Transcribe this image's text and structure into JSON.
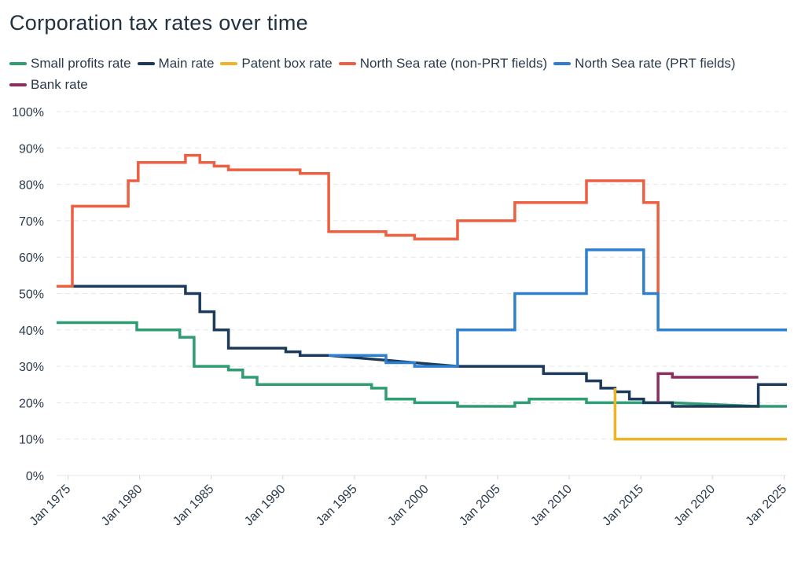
{
  "chart_data": {
    "type": "line",
    "title": "Corporation tax rates over time",
    "xlabel": "",
    "ylabel": "",
    "x_ticks": [
      "Jan 1975",
      "Jan 1980",
      "Jan 1985",
      "Jan 1990",
      "Jan 1995",
      "Jan 2000",
      "Jan 2005",
      "Jan 2010",
      "Jan 2015",
      "Jan 2020",
      "Jan 2025"
    ],
    "y_ticks": [
      "0%",
      "10%",
      "20%",
      "30%",
      "40%",
      "50%",
      "60%",
      "70%",
      "80%",
      "90%",
      "100%"
    ],
    "xlim": [
      1974.2,
      2025.2
    ],
    "ylim": [
      0,
      100
    ],
    "grid": "horizontal",
    "legend_position": "top",
    "step": true,
    "series": [
      {
        "name": "Small profits rate",
        "color": "#2e9e72",
        "points": [
          [
            1974.2,
            42
          ],
          [
            1979.8,
            42
          ],
          [
            1979.8,
            40
          ],
          [
            1982.8,
            40
          ],
          [
            1982.8,
            38
          ],
          [
            1983.8,
            38
          ],
          [
            1983.8,
            30
          ],
          [
            1986.2,
            30
          ],
          [
            1986.2,
            29
          ],
          [
            1987.2,
            29
          ],
          [
            1987.2,
            27
          ],
          [
            1988.2,
            27
          ],
          [
            1988.2,
            25
          ],
          [
            1996.2,
            25
          ],
          [
            1996.2,
            24
          ],
          [
            1997.2,
            24
          ],
          [
            1997.2,
            21
          ],
          [
            1999.2,
            21
          ],
          [
            1999.2,
            20
          ],
          [
            2002.2,
            20
          ],
          [
            2002.2,
            19
          ],
          [
            2006.2,
            19
          ],
          [
            2006.2,
            20
          ],
          [
            2007.2,
            20
          ],
          [
            2007.2,
            21
          ],
          [
            2011.2,
            21
          ],
          [
            2011.2,
            20
          ],
          [
            2017.2,
            20
          ],
          [
            2023.2,
            19
          ],
          [
            2025.2,
            19
          ]
        ]
      },
      {
        "name": "Main rate",
        "color": "#1b3a5c",
        "points": [
          [
            1974.2,
            52
          ],
          [
            1983.2,
            52
          ],
          [
            1983.2,
            50
          ],
          [
            1984.2,
            50
          ],
          [
            1984.2,
            45
          ],
          [
            1985.2,
            45
          ],
          [
            1985.2,
            40
          ],
          [
            1986.2,
            40
          ],
          [
            1986.2,
            35
          ],
          [
            1990.2,
            35
          ],
          [
            1990.2,
            34
          ],
          [
            1991.2,
            34
          ],
          [
            1991.2,
            33
          ],
          [
            1993.2,
            33
          ],
          [
            2002.2,
            30
          ],
          [
            2008.2,
            30
          ],
          [
            2008.2,
            28
          ],
          [
            2011.2,
            28
          ],
          [
            2011.2,
            26
          ],
          [
            2012.2,
            26
          ],
          [
            2012.2,
            24
          ],
          [
            2013.2,
            24
          ],
          [
            2013.2,
            23
          ],
          [
            2014.2,
            23
          ],
          [
            2014.2,
            21
          ],
          [
            2015.2,
            21
          ],
          [
            2015.2,
            20
          ],
          [
            2017.2,
            20
          ],
          [
            2017.2,
            19
          ],
          [
            2023.2,
            19
          ],
          [
            2023.2,
            25
          ],
          [
            2025.2,
            25
          ]
        ]
      },
      {
        "name": "Patent box rate",
        "color": "#f0b323",
        "points": [
          [
            2013.2,
            24
          ],
          [
            2013.2,
            10
          ],
          [
            2025.2,
            10
          ]
        ]
      },
      {
        "name": "North Sea rate (non-PRT fields)",
        "color": "#ec5f40",
        "points": [
          [
            1974.2,
            52
          ],
          [
            1975.3,
            52
          ],
          [
            1975.3,
            74
          ],
          [
            1979.2,
            74
          ],
          [
            1979.2,
            81
          ],
          [
            1979.9,
            81
          ],
          [
            1979.9,
            86
          ],
          [
            1983.2,
            86
          ],
          [
            1983.2,
            88
          ],
          [
            1984.2,
            88
          ],
          [
            1984.2,
            86
          ],
          [
            1985.2,
            86
          ],
          [
            1985.2,
            85
          ],
          [
            1986.2,
            85
          ],
          [
            1986.2,
            84
          ],
          [
            1991.2,
            84
          ],
          [
            1991.2,
            83
          ],
          [
            1993.2,
            83
          ],
          [
            1993.2,
            67
          ],
          [
            1997.2,
            67
          ],
          [
            1997.2,
            66
          ],
          [
            1999.2,
            66
          ],
          [
            1999.2,
            65
          ],
          [
            2002.2,
            65
          ],
          [
            2002.2,
            70
          ],
          [
            2006.2,
            70
          ],
          [
            2006.2,
            75
          ],
          [
            2011.2,
            75
          ],
          [
            2011.2,
            81
          ],
          [
            2015.2,
            81
          ],
          [
            2015.2,
            75
          ],
          [
            2016.2,
            75
          ],
          [
            2016.2,
            50
          ]
        ]
      },
      {
        "name": "North Sea rate (PRT fields)",
        "color": "#2f7fcf",
        "points": [
          [
            1993.2,
            33
          ],
          [
            1997.2,
            33
          ],
          [
            1997.2,
            31
          ],
          [
            1999.2,
            31
          ],
          [
            1999.2,
            30
          ],
          [
            2002.2,
            30
          ],
          [
            2002.2,
            40
          ],
          [
            2006.2,
            40
          ],
          [
            2006.2,
            50
          ],
          [
            2011.2,
            50
          ],
          [
            2011.2,
            62
          ],
          [
            2015.2,
            62
          ],
          [
            2015.2,
            50
          ],
          [
            2016.2,
            50
          ],
          [
            2016.2,
            40
          ],
          [
            2025.2,
            40
          ]
        ]
      },
      {
        "name": "Bank rate",
        "color": "#8b2d5e",
        "points": [
          [
            2016.2,
            20
          ],
          [
            2016.2,
            28
          ],
          [
            2017.2,
            28
          ],
          [
            2017.2,
            27
          ],
          [
            2023.2,
            27
          ]
        ]
      }
    ]
  }
}
